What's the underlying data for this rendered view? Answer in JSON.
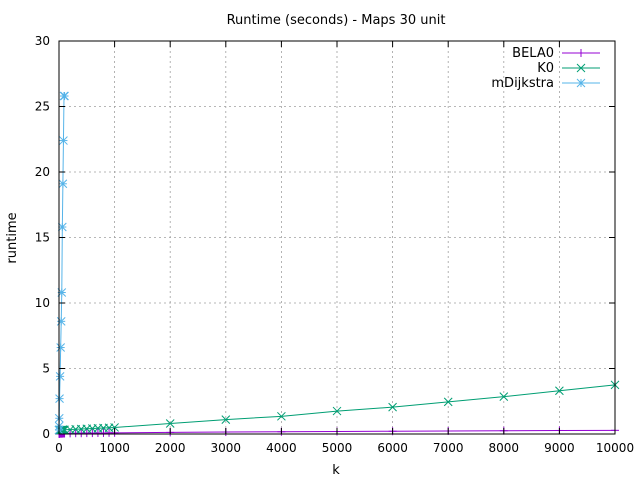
{
  "chart_data": {
    "type": "line",
    "title": "Runtime (seconds) - Maps 30 unit",
    "xlabel": "k",
    "ylabel": "runtime",
    "xlim": [
      0,
      10000
    ],
    "ylim": [
      0,
      30
    ],
    "xticks": [
      0,
      1000,
      2000,
      3000,
      4000,
      5000,
      6000,
      7000,
      8000,
      9000,
      10000
    ],
    "yticks": [
      0,
      5,
      10,
      15,
      20,
      25,
      30
    ],
    "grid": true,
    "legend": "top-right",
    "series": [
      {
        "name": "BELA0",
        "color": "#9400d3",
        "marker": "plus",
        "x": [
          1,
          2,
          5,
          10,
          20,
          30,
          40,
          50,
          60,
          70,
          80,
          90,
          100,
          200,
          300,
          400,
          500,
          600,
          700,
          800,
          900,
          1000,
          2000,
          3000,
          4000,
          5000,
          6000,
          7000,
          8000,
          9000,
          10000
        ],
        "y": [
          0.02,
          0.02,
          0.02,
          0.02,
          0.03,
          0.03,
          0.03,
          0.03,
          0.03,
          0.04,
          0.04,
          0.04,
          0.04,
          0.05,
          0.06,
          0.06,
          0.07,
          0.07,
          0.08,
          0.08,
          0.09,
          0.09,
          0.12,
          0.15,
          0.17,
          0.19,
          0.21,
          0.23,
          0.25,
          0.27,
          0.28
        ]
      },
      {
        "name": "K0",
        "color": "#009e73",
        "marker": "cross",
        "x": [
          1,
          2,
          5,
          10,
          20,
          30,
          40,
          50,
          60,
          70,
          80,
          90,
          100,
          200,
          300,
          400,
          500,
          600,
          700,
          800,
          900,
          1000,
          2000,
          3000,
          4000,
          5000,
          6000,
          7000,
          8000,
          9000,
          10000
        ],
        "y": [
          0.3,
          0.3,
          0.3,
          0.3,
          0.3,
          0.3,
          0.3,
          0.3,
          0.31,
          0.31,
          0.31,
          0.31,
          0.32,
          0.34,
          0.36,
          0.38,
          0.4,
          0.42,
          0.44,
          0.46,
          0.48,
          0.5,
          0.8,
          1.1,
          1.35,
          1.75,
          2.05,
          2.45,
          2.85,
          3.3,
          3.75
        ]
      },
      {
        "name": "mDijkstra",
        "color": "#56b4e9",
        "marker": "star",
        "x": [
          1,
          2,
          5,
          10,
          20,
          30,
          40,
          50,
          60,
          70,
          80,
          90,
          100
        ],
        "y": [
          0.3,
          0.6,
          1.2,
          2.7,
          4.4,
          6.6,
          8.6,
          10.8,
          15.8,
          19.1,
          22.4,
          25.8,
          25.8
        ]
      }
    ]
  }
}
